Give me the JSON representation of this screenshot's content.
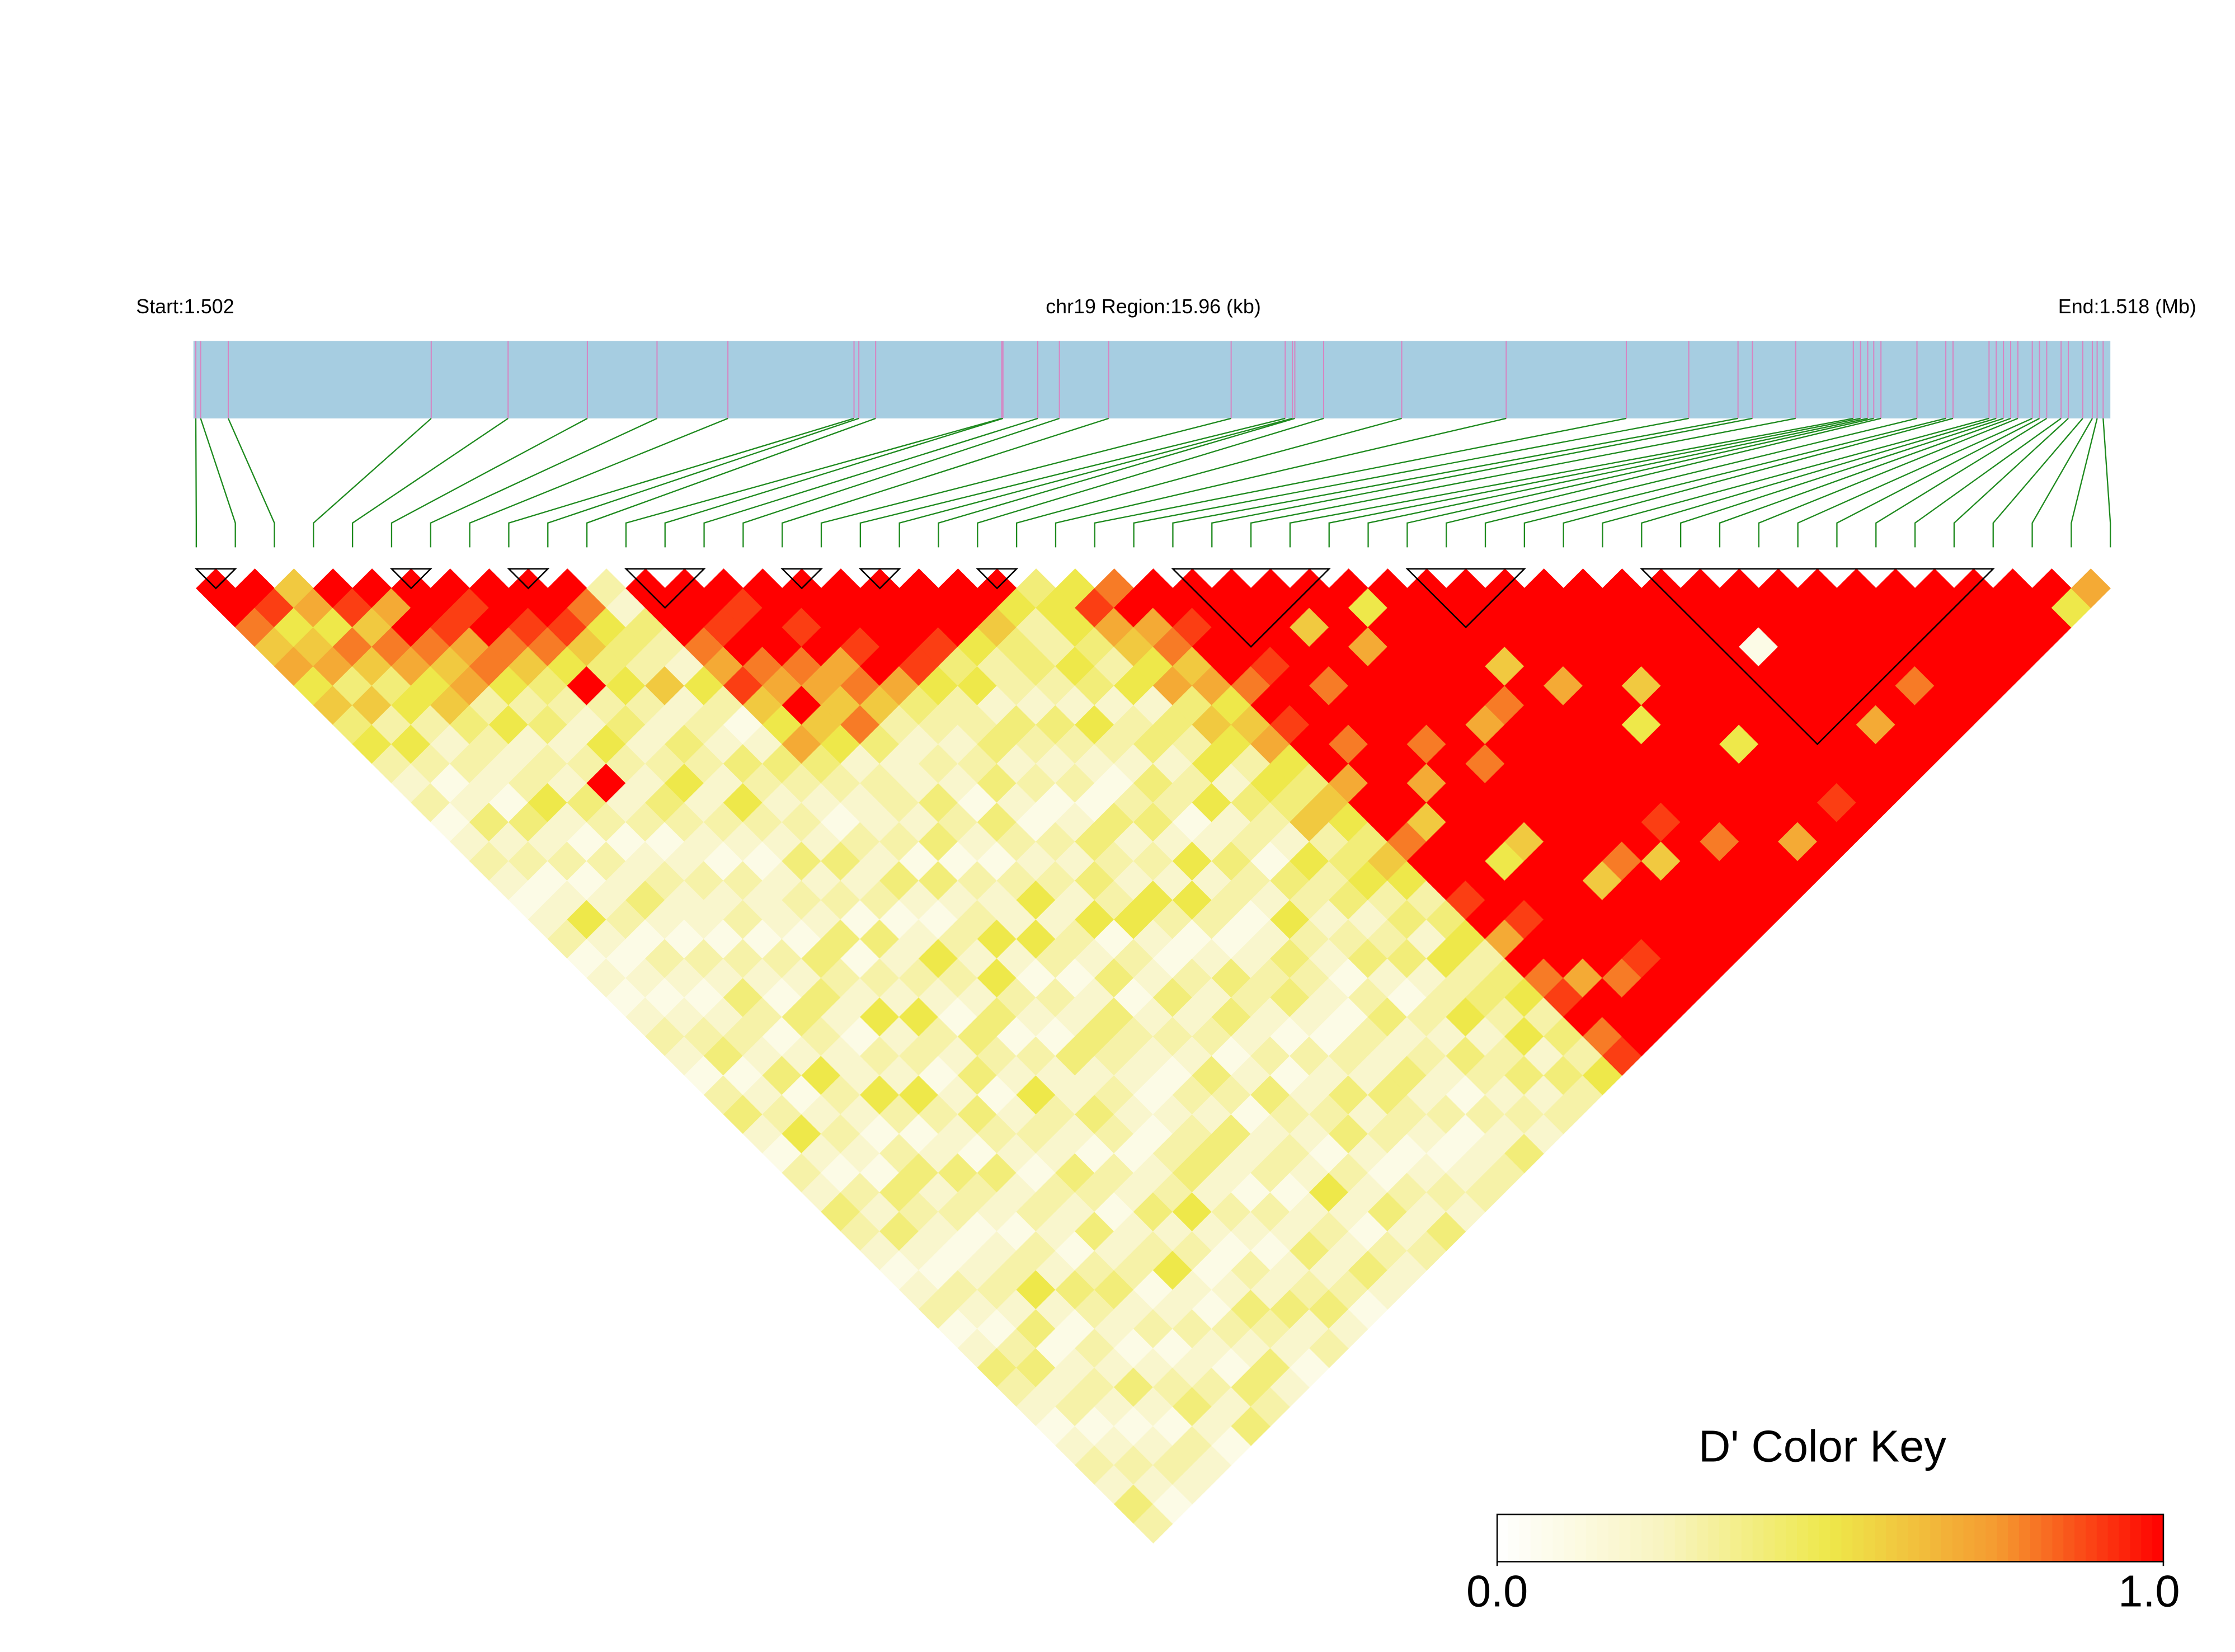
{
  "chart_data": {
    "type": "heatmap",
    "start_label": "Start:1.502",
    "region_label": "chr19 Region:15.96 (kb)",
    "end_label": "End:1.518 (Mb)",
    "legend_title": "D' Color Key",
    "xlim": [
      1.502,
      1.51796
    ],
    "snp_positions": [
      1.50202,
      1.50206,
      1.50229,
      1.50398,
      1.50462,
      1.50528,
      1.50586,
      1.50645,
      1.5075,
      1.50754,
      1.50768,
      1.50873,
      1.50874,
      1.50903,
      1.50921,
      1.50962,
      1.51064,
      1.51109,
      1.51115,
      1.51117,
      1.51141,
      1.51206,
      1.51293,
      1.51393,
      1.51445,
      1.51486,
      1.51498,
      1.51534,
      1.51582,
      1.51588,
      1.51594,
      1.51599,
      1.51605,
      1.51635,
      1.51659,
      1.51665,
      1.51695,
      1.51701,
      1.51707,
      1.51713,
      1.51719,
      1.51731,
      1.51737,
      1.51743,
      1.51755,
      1.51761,
      1.51773,
      1.51781,
      1.51785,
      1.5179
    ],
    "ld_values": [
      [
        1,
        1,
        0.8,
        0.6,
        0.7,
        0.5,
        0.6,
        0.4,
        0.5,
        0.3,
        0.2,
        0.3,
        0.1,
        0.2,
        0.3,
        0.2,
        0.1,
        0.2,
        0.3,
        0.1,
        0.2,
        0.1,
        0.2,
        0.3,
        0.2,
        0.1,
        0.3,
        0.4,
        0.2,
        0.1,
        0.3,
        0.2,
        0.4,
        0.3,
        0.2,
        0.1,
        0.2,
        0.3,
        0.1,
        0.2,
        0.4,
        0.3,
        0.2,
        0.1,
        0.2,
        0.3,
        0.2,
        0.4,
        0.3
      ],
      [
        1,
        0.9,
        0.5,
        0.6,
        0.7,
        0.4,
        0.6,
        0.3,
        0.5,
        0.3,
        0.1,
        0.2,
        0.4,
        0.2,
        0.3,
        0.1,
        0.2,
        0.5,
        0.2,
        0.1,
        0.2,
        0.1,
        0.2,
        0.3,
        0.4,
        0.1,
        0.2,
        0.3,
        0.5,
        0.2,
        0.1,
        0.3,
        0.2,
        0.4,
        0.2,
        0.1,
        0.3,
        0.2,
        0.1,
        0.3,
        0.4,
        0.2,
        0.3,
        0.1,
        0.2,
        0.3,
        0.2,
        0.1
      ],
      [
        0.6,
        0.7,
        0.5,
        0.8,
        0.6,
        0.4,
        0.5,
        0.3,
        0.2,
        0.3,
        0.2,
        0.1,
        0.4,
        0.2,
        0.3,
        0.1,
        0.2,
        0.3,
        0.1,
        0.3,
        0.2,
        0.1,
        0.2,
        0.3,
        0.2,
        0.4,
        0.1,
        0.2,
        0.3,
        0.2,
        0.1,
        0.4,
        0.3,
        0.2,
        0.1,
        0.2,
        0.3,
        0.2,
        0.4,
        0.1,
        0.2,
        0.3,
        0.2,
        0.1,
        0.2,
        0.3,
        0.2
      ],
      [
        1,
        0.9,
        0.6,
        0.8,
        0.7,
        0.5,
        0.6,
        0.4,
        0.3,
        0.2,
        0.3,
        0.5,
        0.2,
        0.1,
        0.3,
        0.2,
        0.4,
        0.2,
        0.1,
        0.3,
        0.2,
        0.4,
        0.3,
        0.1,
        0.2,
        0.5,
        0.3,
        0.2,
        0.1,
        0.3,
        0.4,
        0.2,
        0.3,
        0.1,
        0.2,
        0.3,
        0.5,
        0.2,
        0.1,
        0.3,
        0.2,
        0.4,
        0.2,
        0.1,
        0.3,
        0.2
      ],
      [
        1,
        0.7,
        1,
        0.8,
        0.6,
        0.7,
        0.3,
        0.5,
        0.2,
        0.3,
        0.2,
        0.4,
        0.3,
        0.1,
        0.2,
        0.3,
        0.2,
        0.2,
        0.1,
        0.3,
        0.2,
        0.1,
        0.4,
        0.3,
        0.2,
        0.2,
        0.5,
        0.3,
        0.1,
        0.2,
        0.4,
        0.3,
        0.2,
        0.1,
        0.3,
        0.2,
        0.4,
        0.3,
        0.2,
        0.1,
        0.2,
        0.3,
        0.4,
        0.2,
        0.1
      ],
      [
        1,
        1,
        0.9,
        0.7,
        0.8,
        0.5,
        0.3,
        0.4,
        0.2,
        0.3,
        1,
        0.2,
        0.3,
        0.1,
        0.2,
        0.3,
        0.2,
        0.3,
        0.1,
        0.3,
        0.2,
        0.4,
        0.2,
        0.1,
        0.3,
        0.2,
        0.5,
        0.3,
        0.2,
        0.1,
        0.4,
        0.2,
        0.3,
        0.2,
        0.1,
        0.3,
        0.4,
        0.2,
        0.3,
        0.1,
        0.2,
        0.3,
        0.2,
        0.4
      ],
      [
        1,
        0.9,
        1,
        0.8,
        0.6,
        0.4,
        0.3,
        0.2,
        0.5,
        0.3,
        0.2,
        0.4,
        0.3,
        0.2,
        0.1,
        0.3,
        0.2,
        0.2,
        0.1,
        0.4,
        0.3,
        0.2,
        0.5,
        0.2,
        0.3,
        0.1,
        0.2,
        0.4,
        0.3,
        0.2,
        0.1,
        0.3,
        0.2,
        0.4,
        0.2,
        0.3,
        0.1,
        0.2,
        0.3,
        0.2,
        0.1,
        0.4,
        0.3
      ],
      [
        1,
        1,
        0.9,
        0.8,
        0.5,
        1,
        0.3,
        0.4,
        0.2,
        0.3,
        0.5,
        0.2,
        0.3,
        0.2,
        0.1,
        0.2,
        0.3,
        0.2,
        0.4,
        0.1,
        0.3,
        0.2,
        0.5,
        0.3,
        0.2,
        0.4,
        0.1,
        0.2,
        0.3,
        0.2,
        0.4,
        0.3,
        0.1,
        0.2,
        0.3,
        0.5,
        0.2,
        0.1,
        0.3,
        0.2,
        0.4,
        0.2
      ],
      [
        1,
        1,
        0.9,
        0.6,
        0.4,
        0.5,
        0.3,
        0.2,
        0.4,
        0.3,
        0.2,
        0.5,
        0.3,
        0.2,
        0.4,
        0.2,
        0.3,
        0.1,
        0.4,
        0.2,
        0.3,
        0.2,
        0.1,
        0.4,
        0.3,
        0.2,
        0.5,
        0.3,
        0.2,
        0.1,
        0.3,
        0.2,
        0.4,
        0.2,
        0.3,
        0.1,
        0.2,
        0.4,
        0.3,
        0.2,
        0.1
      ],
      [
        1,
        0.8,
        0.5,
        0.4,
        0.3,
        0.6,
        0.2,
        0.3,
        0.2,
        0.4,
        0.3,
        0.2,
        0.3,
        0.2,
        0.4,
        0.2,
        0.3,
        0.1,
        0.2,
        0.5,
        0.3,
        0.2,
        0.4,
        0.1,
        0.3,
        0.2,
        0.2,
        0.4,
        0.3,
        0.1,
        0.2,
        0.3,
        0.5,
        0.2,
        0.1,
        0.3,
        0.2,
        0.4,
        0.2,
        0.3
      ],
      [
        0.3,
        0.2,
        0.4,
        0.3,
        0.2,
        0.5,
        0.3,
        0.1,
        0.2,
        0.4,
        0.3,
        0.2,
        0.1,
        0.3,
        0.2,
        0.4,
        0.2,
        0.1,
        0.3,
        0.2,
        0.5,
        0.3,
        0.2,
        0.1,
        0.4,
        0.2,
        0.3,
        0.2,
        0.1,
        0.3,
        0.4,
        0.2,
        0.3,
        0.2,
        0.1,
        0.2,
        0.3,
        0.4,
        0.2
      ],
      [
        1,
        1,
        1,
        0.8,
        0.7,
        0.9,
        0.6,
        0.5,
        0.7,
        0.4,
        0.3,
        0.2,
        0.2,
        0.3,
        0.1,
        0.4,
        0.2,
        0.3,
        0.5,
        0.2,
        0.1,
        0.3,
        0.2,
        0.4,
        0.3,
        0.2,
        0.1,
        0.2,
        0.3,
        0.4,
        0.2,
        0.1,
        0.3,
        0.2,
        0.4,
        0.2,
        0.3,
        0.1
      ],
      [
        1,
        1,
        0.9,
        1,
        0.8,
        0.7,
        1,
        0.6,
        0.5,
        0.2,
        0.3,
        0.3,
        0.2,
        0.4,
        0.1,
        0.3,
        0.2,
        0.2,
        0.5,
        0.3,
        0.1,
        0.2,
        0.4,
        0.3,
        0.2,
        0.1,
        0.3,
        0.2,
        0.4,
        0.2,
        0.3,
        0.1,
        0.2,
        0.3,
        0.2,
        0.4,
        0.2
      ],
      [
        1,
        0.9,
        1,
        1,
        0.8,
        0.7,
        0.6,
        0.8,
        0.4,
        0.2,
        0.2,
        0.4,
        0.3,
        0.2,
        0.1,
        0.3,
        0.5,
        0.2,
        0.3,
        0.2,
        0.4,
        0.1,
        0.2,
        0.3,
        0.2,
        0.4,
        0.3,
        0.1,
        0.2,
        0.3,
        0.2,
        0.5,
        0.2,
        0.1,
        0.3,
        0.2
      ],
      [
        1,
        1,
        0.9,
        1,
        0.7,
        0.8,
        0.6,
        0.3,
        0.2,
        0.3,
        0.2,
        0.1,
        0.4,
        0.3,
        0.2,
        0.3,
        0.2,
        0.5,
        0.1,
        0.3,
        0.2,
        0.4,
        0.2,
        0.3,
        0.1,
        0.2,
        0.4,
        0.3,
        0.2,
        0.1,
        0.3,
        0.2,
        0.4,
        0.2,
        0.3
      ],
      [
        1,
        1,
        1,
        0.9,
        1,
        0.7,
        0.4,
        0.3,
        0.2,
        0.3,
        0.4,
        0.2,
        0.1,
        0.3,
        0.2,
        0.4,
        0.3,
        0.5,
        0.2,
        0.1,
        0.3,
        0.2,
        0.4,
        0.2,
        0.3,
        0.1,
        0.2,
        0.3,
        0.4,
        0.2,
        0.1,
        0.3,
        0.2,
        0.4
      ],
      [
        1,
        1,
        1,
        1,
        0.9,
        0.5,
        0.3,
        0.3,
        0.4,
        0.2,
        0.3,
        0.1,
        0.2,
        0.4,
        0.3,
        0.2,
        0.5,
        0.3,
        0.1,
        0.2,
        0.4,
        0.3,
        0.2,
        0.1,
        0.3,
        0.2,
        0.4,
        0.2,
        0.3,
        0.1,
        0.2,
        0.3,
        0.2
      ],
      [
        1,
        1,
        1,
        0.9,
        0.4,
        0.5,
        0.2,
        0.4,
        0.3,
        0.2,
        0.3,
        0.1,
        0.4,
        0.2,
        0.3,
        0.2,
        0.5,
        0.3,
        0.1,
        0.2,
        0.3,
        0.4,
        0.2,
        0.1,
        0.3,
        0.2,
        0.4,
        0.3,
        0.2,
        0.1,
        0.2,
        0.3
      ],
      [
        1,
        1,
        1,
        0.5,
        0.3,
        0.3,
        0.2,
        0.4,
        0.3,
        0.2,
        0.1,
        0.3,
        0.4,
        0.2,
        0.5,
        0.2,
        0.3,
        0.1,
        0.2,
        0.4,
        0.3,
        0.2,
        0.1,
        0.3,
        0.2,
        0.4,
        0.2,
        0.3,
        0.1,
        0.2,
        0.3
      ],
      [
        1,
        1,
        0.6,
        0.4,
        0.4,
        0.3,
        0.2,
        0.5,
        0.3,
        0.2,
        0.4,
        0.3,
        0.1,
        0.2,
        0.4,
        0.3,
        0.2,
        0.5,
        0.3,
        0.2,
        0.1,
        0.3,
        0.4,
        0.2,
        0.3,
        0.2,
        0.1,
        0.3,
        0.2,
        0.4
      ],
      [
        1,
        0.5,
        0.3,
        0.3,
        0.5,
        0.4,
        0.2,
        0.3,
        0.4,
        0.2,
        0.3,
        0.5,
        0.2,
        0.3,
        0.1,
        0.4,
        0.3,
        0.2,
        0.3,
        0.4,
        0.2,
        0.1,
        0.3,
        0.2,
        0.4,
        0.3,
        0.2,
        0.3,
        0.2
      ],
      [
        0.4,
        0.5,
        0.5,
        0.4,
        0.3,
        0.5,
        0.2,
        0.4,
        0.3,
        0.5,
        0.2,
        0.4,
        0.3,
        0.2,
        0.5,
        0.3,
        0.4,
        0.2,
        0.3,
        0.4,
        0.2,
        0.3,
        0.5,
        0.2,
        0.3,
        0.4,
        0.2,
        0.3
      ],
      [
        0.5,
        0.9,
        0.7,
        0.6,
        0.5,
        0.7,
        0.4,
        0.6,
        0.5,
        0.3,
        0.5,
        0.4,
        0.6,
        0.3,
        0.4,
        0.5,
        0.3,
        0.4,
        0.2,
        0.5,
        0.3,
        0.4,
        0.3,
        0.5,
        0.2,
        0.4,
        0.3
      ],
      [
        0.8,
        1,
        0.7,
        0.8,
        0.6,
        0.7,
        0.5,
        0.6,
        0.7,
        0.5,
        0.4,
        0.6,
        0.5,
        0.4,
        0.6,
        0.5,
        0.3,
        0.4,
        0.5,
        0.3,
        0.4,
        0.5,
        0.3,
        0.4,
        0.3,
        0.5
      ],
      [
        1,
        1,
        0.9,
        1,
        1,
        0.8,
        1,
        0.9,
        1,
        1,
        0.7,
        1,
        1,
        0.8,
        1,
        1,
        0.9,
        1,
        0.7,
        1,
        0.8,
        0.9,
        1,
        0.8,
        0.9
      ],
      [
        1,
        1,
        1,
        1,
        0.9,
        1,
        1,
        1,
        0.8,
        1,
        1,
        1,
        0.6,
        1,
        1,
        1,
        1,
        0.9,
        1,
        1,
        0.7,
        1,
        1,
        1
      ],
      [
        1,
        1,
        1,
        1,
        1,
        0.8,
        1,
        1,
        1,
        1,
        0.7,
        1,
        1,
        1,
        0.5,
        1,
        1,
        1,
        1,
        1,
        0.8,
        1,
        1
      ],
      [
        1,
        1,
        0.6,
        1,
        1,
        1,
        1,
        1,
        0.8,
        1,
        1,
        1,
        1,
        0.6,
        1,
        1,
        1,
        1,
        1,
        0.9,
        1,
        1
      ],
      [
        1,
        1,
        1,
        0.7,
        1,
        1,
        1,
        1,
        1,
        0.8,
        1,
        1,
        1,
        1,
        1,
        0.6,
        1,
        1,
        1,
        1,
        1
      ],
      [
        1,
        0.5,
        1,
        1,
        1,
        1,
        1,
        0.7,
        1,
        1,
        1,
        1,
        1,
        1,
        0.8,
        1,
        1,
        1,
        1,
        1
      ],
      [
        1,
        1,
        1,
        1,
        1,
        1,
        0.8,
        1,
        1,
        1,
        1,
        1,
        1,
        1,
        0.6,
        1,
        1,
        1,
        1
      ],
      [
        1,
        1,
        1,
        1,
        0.6,
        1,
        1,
        1,
        1,
        1,
        1,
        1,
        0.9,
        1,
        1,
        1,
        1,
        1
      ],
      [
        1,
        1,
        1,
        1,
        1,
        0.7,
        1,
        1,
        1,
        1,
        1,
        1,
        1,
        0.8,
        1,
        1,
        1
      ],
      [
        1,
        1,
        1,
        1,
        1,
        1,
        1,
        0.5,
        1,
        1,
        1,
        1,
        1,
        1,
        1,
        1
      ],
      [
        1,
        1,
        1,
        1,
        1,
        0.6,
        1,
        1,
        1,
        1,
        1,
        1,
        1,
        0.7,
        1
      ],
      [
        1,
        1,
        1,
        1,
        1,
        1,
        1,
        1,
        0.5,
        1,
        1,
        1,
        1,
        1
      ],
      [
        1,
        1,
        1,
        1,
        1,
        1,
        1,
        1,
        1,
        1,
        1,
        0.9,
        1
      ],
      [
        1,
        1,
        1,
        1,
        1,
        1,
        1,
        1,
        1,
        1,
        1,
        1
      ],
      [
        1,
        1,
        1,
        0.1,
        1,
        1,
        1,
        1,
        1,
        1,
        1
      ],
      [
        1,
        1,
        1,
        1,
        1,
        1,
        1,
        0.7,
        1,
        1
      ],
      [
        1,
        1,
        1,
        1,
        1,
        1,
        1,
        1,
        1
      ],
      [
        1,
        1,
        1,
        1,
        1,
        0.8,
        1,
        1
      ],
      [
        1,
        1,
        1,
        1,
        1,
        1,
        1
      ],
      [
        1,
        1,
        1,
        1,
        1,
        1
      ],
      [
        1,
        1,
        1,
        1,
        1
      ],
      [
        1,
        1,
        1,
        1
      ],
      [
        1,
        1,
        1
      ],
      [
        1,
        0.5
      ],
      [
        0.7
      ]
    ],
    "blocks": [
      [
        0,
        1
      ],
      [
        5,
        6
      ],
      [
        8,
        9
      ],
      [
        11,
        13
      ],
      [
        15,
        16
      ],
      [
        17,
        18
      ],
      [
        20,
        21
      ],
      [
        25,
        29
      ],
      [
        31,
        34
      ],
      [
        37,
        46
      ]
    ],
    "colorbar_lim": [
      0,
      1
    ],
    "colorbar_ticks": [
      {
        "value": 0,
        "label": "0.0"
      },
      {
        "value": 1,
        "label": "1.0"
      }
    ],
    "colors": [
      "#ffffff",
      "#f8f4c0",
      "#eee84a",
      "#f59a30",
      "#ff0000"
    ],
    "bar_color": "#a6cde1",
    "snp_line_color": "#d685c2",
    "connector_color": "#1e8a1e"
  }
}
